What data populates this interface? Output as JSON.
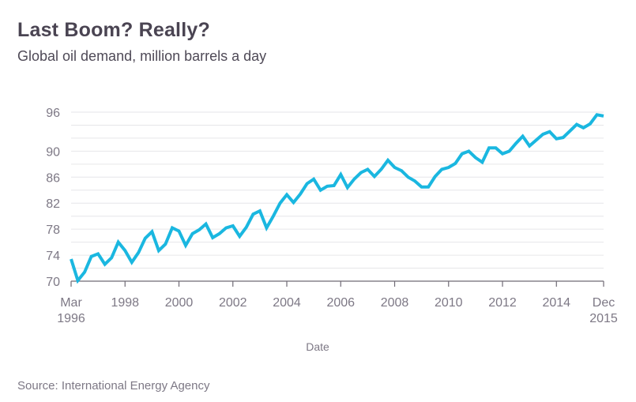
{
  "header": {
    "title": "Last Boom? Really?",
    "subtitle": "Global oil demand, million barrels a day"
  },
  "footer": {
    "source": "Source: International Energy Agency"
  },
  "colors": {
    "line": "#1ab7e0",
    "grid": "#e6e6e9",
    "axis": "#6f6a75",
    "text": "#7d7885",
    "title": "#4a4452"
  },
  "chart_data": {
    "type": "line",
    "title": "Last Boom? Really?",
    "subtitle": "Global oil demand, million barrels a day",
    "xlabel": "Date",
    "ylabel": "",
    "ylim": [
      70,
      96
    ],
    "grid": true,
    "grid_step": 2,
    "legend": "none",
    "x_start": "Mar 1996",
    "x_end": "Dec 2015",
    "x_frequency": "quarterly",
    "x_range_years": [
      1996.0,
      2015.75
    ],
    "x_ticks": [
      {
        "value": 1996.0,
        "label": [
          "Mar",
          "1996"
        ]
      },
      {
        "value": 1998.0,
        "label": [
          "1998"
        ]
      },
      {
        "value": 2000.0,
        "label": [
          "2000"
        ]
      },
      {
        "value": 2002.0,
        "label": [
          "2002"
        ]
      },
      {
        "value": 2004.0,
        "label": [
          "2004"
        ]
      },
      {
        "value": 2006.0,
        "label": [
          "2006"
        ]
      },
      {
        "value": 2008.0,
        "label": [
          "2008"
        ]
      },
      {
        "value": 2010.0,
        "label": [
          "2010"
        ]
      },
      {
        "value": 2012.0,
        "label": [
          "2012"
        ]
      },
      {
        "value": 2014.0,
        "label": [
          "2014"
        ]
      },
      {
        "value": 2015.75,
        "label": [
          "Dec",
          "2015"
        ]
      }
    ],
    "y_ticks": [
      70,
      74,
      78,
      82,
      86,
      90,
      96
    ],
    "series": [
      {
        "name": "Global oil demand",
        "values": [
          73.4,
          70.1,
          71.4,
          73.8,
          74.2,
          72.6,
          73.6,
          76.0,
          74.7,
          72.9,
          74.4,
          76.6,
          77.6,
          74.7,
          75.7,
          78.2,
          77.7,
          75.5,
          77.3,
          77.9,
          78.8,
          76.7,
          77.3,
          78.2,
          78.5,
          76.9,
          78.3,
          80.3,
          80.8,
          78.2,
          80.0,
          82.0,
          83.3,
          82.1,
          83.4,
          85.0,
          85.7,
          84.0,
          84.6,
          84.7,
          86.4,
          84.4,
          85.7,
          86.7,
          87.2,
          86.1,
          87.2,
          88.6,
          87.5,
          87.0,
          86.0,
          85.4,
          84.5,
          84.5,
          86.1,
          87.2,
          87.5,
          88.1,
          89.6,
          90.0,
          89.0,
          88.3,
          90.5,
          90.5,
          89.6,
          90.0,
          91.2,
          92.3,
          90.8,
          91.7,
          92.6,
          93.0,
          91.9,
          92.1,
          93.1,
          94.1,
          93.6,
          94.2,
          95.6,
          95.4
        ]
      }
    ]
  }
}
